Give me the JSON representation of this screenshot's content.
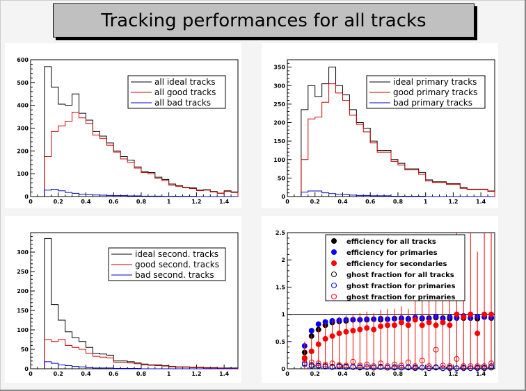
{
  "title": "Tracking performances for all tracks",
  "chart_data": [
    {
      "type": "histogram",
      "xlim": [
        0,
        1.5
      ],
      "ylim": [
        0,
        600
      ],
      "xticks": [
        0,
        0.2,
        0.4,
        0.6,
        0.8,
        1,
        1.2,
        1.4
      ],
      "xtick_labels": [
        "0",
        "0.2",
        "0.4",
        "0.6",
        "0.8",
        "1",
        "1.2",
        "1.4"
      ],
      "yticks": [
        0,
        100,
        200,
        300,
        400,
        500,
        600
      ],
      "ytick_labels": [
        "0",
        "100",
        "200",
        "300",
        "400",
        "500",
        "600"
      ],
      "bin_edges_start": 0.1,
      "bin_width": 0.05,
      "series": [
        {
          "name": "all ideal tracks",
          "color": "#000000",
          "values": [
            570,
            480,
            405,
            400,
            450,
            365,
            335,
            285,
            265,
            235,
            200,
            175,
            160,
            130,
            110,
            105,
            85,
            75,
            55,
            48,
            40,
            38,
            28,
            30,
            22,
            15,
            25,
            20
          ]
        },
        {
          "name": "all good tracks",
          "color": "#cc0000",
          "values": [
            175,
            285,
            310,
            330,
            370,
            345,
            320,
            270,
            255,
            225,
            195,
            165,
            150,
            125,
            105,
            100,
            80,
            70,
            50,
            45,
            38,
            35,
            26,
            28,
            20,
            14,
            22,
            18
          ]
        },
        {
          "name": "all bad tracks",
          "color": "#0000cc",
          "values": [
            28,
            32,
            25,
            18,
            14,
            10,
            8,
            7,
            6,
            5,
            4,
            4,
            3,
            3,
            2,
            2,
            2,
            1,
            1,
            1,
            1,
            1,
            0,
            0,
            0,
            0,
            0,
            0
          ]
        }
      ],
      "legend_placement": "top-right"
    },
    {
      "type": "histogram",
      "xlim": [
        0,
        1.5
      ],
      "ylim": [
        0,
        370
      ],
      "xticks": [
        0,
        0.2,
        0.4,
        0.6,
        0.8,
        1,
        1.2,
        1.4
      ],
      "xtick_labels": [
        "0",
        "0.2",
        "0.4",
        "0.6",
        "0.8",
        "1",
        "1.2",
        "1.4"
      ],
      "yticks": [
        0,
        50,
        100,
        150,
        200,
        250,
        300,
        350
      ],
      "ytick_labels": [
        "0",
        "50",
        "100",
        "150",
        "200",
        "250",
        "300",
        "350"
      ],
      "bin_edges_start": 0.1,
      "bin_width": 0.05,
      "series": [
        {
          "name": "ideal primary tracks",
          "color": "#000000",
          "values": [
            235,
            300,
            270,
            305,
            350,
            300,
            275,
            235,
            200,
            185,
            150,
            125,
            125,
            100,
            90,
            75,
            75,
            65,
            45,
            40,
            40,
            35,
            35,
            25,
            20,
            20,
            20,
            15
          ]
        },
        {
          "name": "good primary tracks",
          "color": "#cc0000",
          "values": [
            100,
            210,
            215,
            255,
            305,
            280,
            260,
            220,
            195,
            175,
            145,
            120,
            120,
            95,
            85,
            72,
            72,
            60,
            42,
            38,
            38,
            33,
            33,
            22,
            19,
            19,
            19,
            14
          ]
        },
        {
          "name": "bad primary tracks",
          "color": "#0000cc",
          "values": [
            12,
            15,
            15,
            10,
            8,
            6,
            5,
            4,
            3,
            3,
            2,
            2,
            2,
            1,
            1,
            1,
            1,
            1,
            0,
            0,
            0,
            0,
            0,
            0,
            0,
            0,
            0,
            0
          ]
        }
      ],
      "legend_placement": "top-right"
    },
    {
      "type": "histogram",
      "xlim": [
        0,
        1.5
      ],
      "ylim": [
        0,
        350
      ],
      "xticks": [
        0,
        0.2,
        0.4,
        0.6,
        0.8,
        1,
        1.2,
        1.4
      ],
      "xtick_labels": [
        "0",
        "0.2",
        "0.4",
        "0.6",
        "0.8",
        "1",
        "1.2",
        "1.4"
      ],
      "yticks": [
        0,
        50,
        100,
        150,
        200,
        250,
        300
      ],
      "ytick_labels": [
        "0",
        "50",
        "100",
        "150",
        "200",
        "250",
        "300"
      ],
      "bin_edges_start": 0.1,
      "bin_width": 0.05,
      "series": [
        {
          "name": "ideal second. tracks",
          "color": "#000000",
          "values": [
            335,
            165,
            125,
            95,
            80,
            70,
            55,
            40,
            38,
            35,
            20,
            20,
            18,
            15,
            12,
            10,
            10,
            8,
            6,
            5,
            5,
            4,
            4,
            3,
            3,
            2,
            2,
            2
          ]
        },
        {
          "name": "good second. tracks",
          "color": "#cc0000",
          "values": [
            75,
            70,
            75,
            60,
            55,
            50,
            40,
            32,
            30,
            28,
            17,
            17,
            15,
            13,
            10,
            9,
            8,
            7,
            5,
            4,
            4,
            3,
            3,
            2,
            2,
            2,
            1,
            1
          ]
        },
        {
          "name": "bad second. tracks",
          "color": "#0000cc",
          "values": [
            18,
            14,
            10,
            8,
            6,
            5,
            3,
            2,
            2,
            2,
            1,
            1,
            1,
            1,
            0,
            0,
            0,
            0,
            0,
            0,
            0,
            0,
            0,
            0,
            0,
            0,
            0,
            0
          ]
        }
      ],
      "legend_placement": "top-right"
    },
    {
      "type": "scatter",
      "xlim": [
        0,
        1.5
      ],
      "ylim": [
        0,
        2.5
      ],
      "xticks": [
        0,
        0.2,
        0.4,
        0.6,
        0.8,
        1,
        1.2,
        1.4
      ],
      "xtick_labels": [
        "0",
        "0.2",
        "0.4",
        "0.6",
        "0.8",
        "1",
        "1.2",
        "1.4"
      ],
      "yticks": [
        0,
        0.5,
        1,
        1.5,
        2,
        2.5
      ],
      "ytick_labels": [
        "0",
        "0.5",
        "1",
        "1.5",
        "2",
        "2.5"
      ],
      "reference_line_y": 1,
      "x": [
        0.125,
        0.175,
        0.225,
        0.275,
        0.325,
        0.375,
        0.425,
        0.475,
        0.525,
        0.575,
        0.625,
        0.675,
        0.725,
        0.775,
        0.825,
        0.875,
        0.925,
        0.975,
        1.025,
        1.075,
        1.125,
        1.175,
        1.225,
        1.275,
        1.325,
        1.375,
        1.425,
        1.475
      ],
      "series": [
        {
          "name": "efficiency for all tracks",
          "color": "#000000",
          "marker": "filled",
          "values": [
            0.3,
            0.6,
            0.72,
            0.8,
            0.85,
            0.87,
            0.88,
            0.9,
            0.9,
            0.9,
            0.91,
            0.9,
            0.91,
            0.92,
            0.92,
            0.91,
            0.93,
            0.92,
            0.93,
            0.94,
            0.93,
            0.92,
            0.94,
            0.93,
            0.93,
            0.92,
            0.95,
            0.93
          ]
        },
        {
          "name": "efficiency for primaries",
          "color": "#0000ff",
          "marker": "filled",
          "values": [
            0.42,
            0.7,
            0.82,
            0.86,
            0.88,
            0.89,
            0.9,
            0.9,
            0.9,
            0.91,
            0.91,
            0.92,
            0.91,
            0.92,
            0.93,
            0.92,
            0.94,
            0.93,
            0.92,
            0.96,
            0.92,
            0.95,
            0.93,
            0.97,
            0.93,
            0.96,
            0.95,
            0.94
          ]
        },
        {
          "name": "efficiency for secondaries",
          "color": "#ff0000",
          "marker": "filled",
          "values": [
            0.2,
            0.32,
            0.45,
            0.55,
            0.6,
            0.65,
            0.68,
            0.7,
            0.72,
            0.75,
            0.72,
            0.78,
            0.8,
            0.8,
            0.85,
            0.8,
            0.9,
            0.8,
            0.85,
            0.8,
            0.85,
            0.8,
            1.0,
            0.95,
            1.0,
            0.65,
            1.0,
            1.0
          ]
        },
        {
          "name": "ghost fraction for all tracks",
          "color": "#000000",
          "marker": "open",
          "values": [
            0.1,
            0.07,
            0.06,
            0.05,
            0.04,
            0.05,
            0.04,
            0.04,
            0.03,
            0.03,
            0.02,
            0.04,
            0.02,
            0.03,
            0.02,
            0.03,
            0.02,
            0.02,
            0.01,
            0.03,
            0.01,
            0.02,
            0.01,
            0.02,
            0.01,
            0.02,
            0.01,
            0.02
          ]
        },
        {
          "name": "ghost fraction for primaries",
          "color": "#0000ff",
          "marker": "open",
          "values": [
            0.08,
            0.05,
            0.05,
            0.04,
            0.03,
            0.04,
            0.03,
            0.03,
            0.02,
            0.03,
            0.02,
            0.03,
            0.02,
            0.02,
            0.02,
            0.02,
            0.01,
            0.02,
            0.01,
            0.02,
            0.01,
            0.01,
            0.01,
            0.01,
            0.01,
            0.01,
            0.02,
            0.05
          ]
        },
        {
          "name": "ghost fraction for primaries",
          "color": "#ff0000",
          "marker": "open",
          "values": [
            0.18,
            0.12,
            0.1,
            0.08,
            0.1,
            0.07,
            0.06,
            0.13,
            0.06,
            0.08,
            0.05,
            0.1,
            0.05,
            0.08,
            0.06,
            0.12,
            0.05,
            0.15,
            0.05,
            0.35,
            0.06,
            0.05,
            0.18,
            0.05,
            0.05,
            0.05,
            0.05,
            0.1
          ]
        }
      ],
      "legend_placement": "top-right"
    }
  ]
}
